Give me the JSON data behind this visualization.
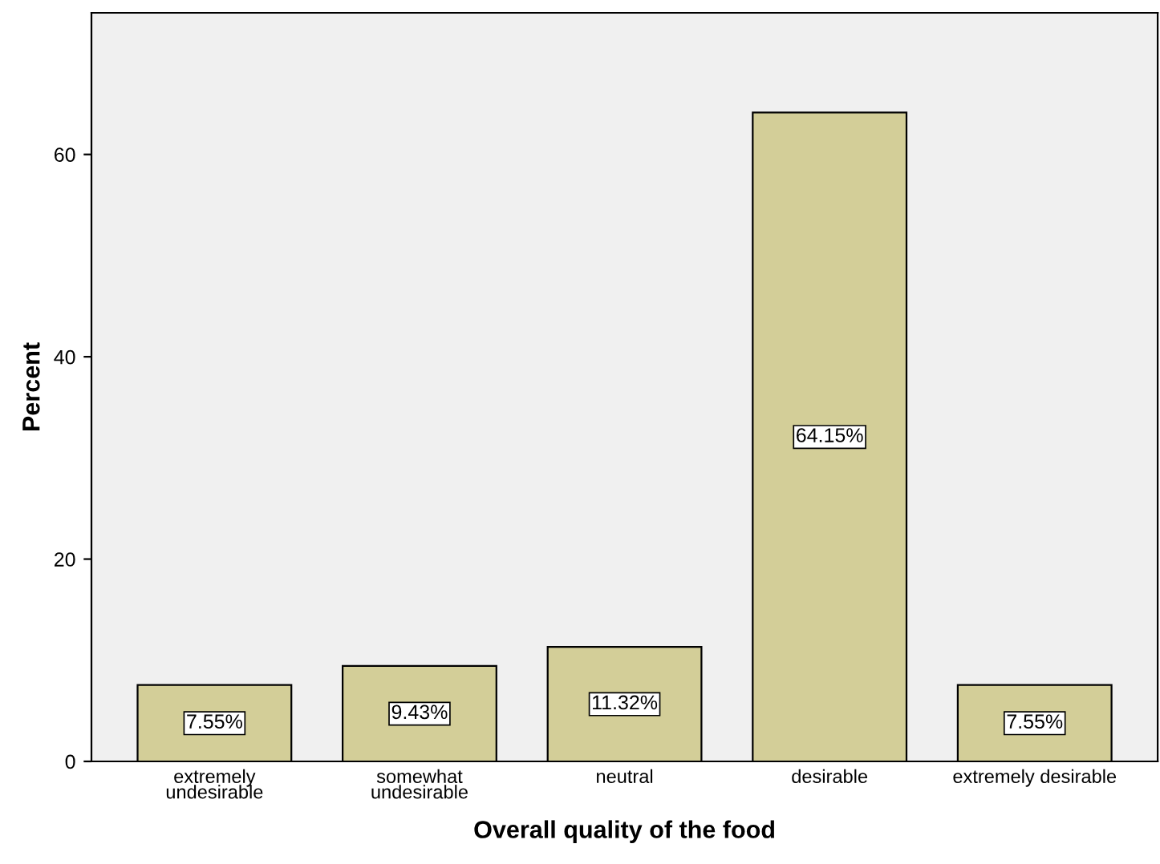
{
  "chart_data": {
    "type": "bar",
    "xlabel": "Overall quality of the food",
    "ylabel": "Percent",
    "categories": [
      "extremely\nundesirable",
      "somewhat\nundesirable",
      "neutral",
      "desirable",
      "extremely desirable"
    ],
    "values": [
      7.55,
      9.43,
      11.32,
      64.15,
      7.55
    ],
    "value_labels": [
      "7.55%",
      "9.43%",
      "11.32%",
      "64.15%",
      "7.55%"
    ],
    "color": "#d3ce98",
    "ylim": [
      0,
      74
    ],
    "yticks": [
      0,
      20,
      40,
      60
    ],
    "grid": false
  }
}
